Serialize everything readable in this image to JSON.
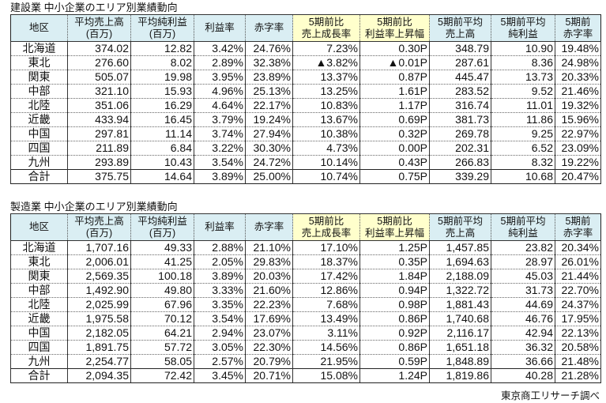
{
  "headers": [
    "地区",
    "平均売上高\n(百万)",
    "平均純利益\n(百万)",
    "利益率",
    "赤字率",
    "5期前比\n売上成長率",
    "5期前比\n利益率上昇幅",
    "5期前平均\n売上高",
    "5期前平均\n純利益",
    "5期前\n赤字率"
  ],
  "header_colors": {
    "blue": "#daeef3",
    "yellow": "#ffffcc"
  },
  "tables": [
    {
      "title": "建設業 中小企業のエリア別業績動向",
      "rows": [
        [
          "北海道",
          "374.02",
          "12.82",
          "3.42%",
          "24.76%",
          "7.23%",
          "0.30P",
          "348.79",
          "10.90",
          "19.48%"
        ],
        [
          "東北",
          "276.60",
          "8.02",
          "2.89%",
          "32.38%",
          "▲3.82%",
          "▲0.01P",
          "287.61",
          "8.36",
          "24.98%"
        ],
        [
          "関東",
          "505.07",
          "19.98",
          "3.95%",
          "23.89%",
          "13.37%",
          "0.87P",
          "445.47",
          "13.73",
          "20.33%"
        ],
        [
          "中部",
          "321.10",
          "15.93",
          "4.96%",
          "25.13%",
          "13.25%",
          "1.61P",
          "283.52",
          "9.52",
          "21.46%"
        ],
        [
          "北陸",
          "351.06",
          "16.29",
          "4.64%",
          "22.17%",
          "10.83%",
          "1.17P",
          "316.74",
          "11.01",
          "19.32%"
        ],
        [
          "近畿",
          "433.94",
          "16.45",
          "3.79%",
          "19.24%",
          "13.67%",
          "0.69P",
          "381.73",
          "11.86",
          "15.96%"
        ],
        [
          "中国",
          "297.81",
          "11.14",
          "3.74%",
          "27.94%",
          "10.38%",
          "0.32P",
          "269.78",
          "9.25",
          "22.97%"
        ],
        [
          "四国",
          "211.89",
          "6.84",
          "3.22%",
          "30.30%",
          "4.73%",
          "0.00P",
          "202.31",
          "6.52",
          "23.09%"
        ],
        [
          "九州",
          "293.89",
          "10.43",
          "3.54%",
          "24.72%",
          "10.14%",
          "0.43P",
          "266.83",
          "8.32",
          "19.22%"
        ],
        [
          "合計",
          "375.75",
          "14.64",
          "3.89%",
          "25.00%",
          "10.74%",
          "0.75P",
          "339.29",
          "10.68",
          "20.47%"
        ]
      ]
    },
    {
      "title": "製造業 中小企業のエリア別業績動向",
      "rows": [
        [
          "北海道",
          "1,707.16",
          "49.33",
          "2.88%",
          "21.10%",
          "17.10%",
          "1.25P",
          "1,457.85",
          "23.82",
          "20.34%"
        ],
        [
          "東北",
          "2,006.01",
          "41.25",
          "2.05%",
          "29.83%",
          "18.37%",
          "0.35P",
          "1,694.63",
          "28.97",
          "26.01%"
        ],
        [
          "関東",
          "2,569.35",
          "100.18",
          "3.89%",
          "20.03%",
          "17.42%",
          "1.84P",
          "2,188.09",
          "45.03",
          "21.44%"
        ],
        [
          "中部",
          "1,492.90",
          "49.80",
          "3.33%",
          "21.60%",
          "12.86%",
          "0.94P",
          "1,322.72",
          "31.73",
          "22.70%"
        ],
        [
          "北陸",
          "2,025.99",
          "67.96",
          "3.35%",
          "22.23%",
          "7.68%",
          "0.98P",
          "1,881.43",
          "44.69",
          "24.37%"
        ],
        [
          "近畿",
          "1,975.58",
          "70.12",
          "3.54%",
          "17.69%",
          "13.49%",
          "0.86P",
          "1,740.68",
          "46.76",
          "17.95%"
        ],
        [
          "中国",
          "2,182.05",
          "64.21",
          "2.94%",
          "23.07%",
          "3.11%",
          "0.92P",
          "2,116.17",
          "42.94",
          "22.13%"
        ],
        [
          "四国",
          "1,891.75",
          "57.72",
          "3.05%",
          "22.30%",
          "14.56%",
          "0.86P",
          "1,651.18",
          "36.32",
          "20.58%"
        ],
        [
          "九州",
          "2,254.77",
          "58.05",
          "2.57%",
          "20.79%",
          "21.95%",
          "0.59P",
          "1,848.89",
          "36.66",
          "21.48%"
        ],
        [
          "合計",
          "2,094.35",
          "72.42",
          "3.45%",
          "20.71%",
          "15.08%",
          "1.24P",
          "1,819.86",
          "40.28",
          "21.28%"
        ]
      ]
    }
  ],
  "footer": "東京商工リサーチ調べ"
}
